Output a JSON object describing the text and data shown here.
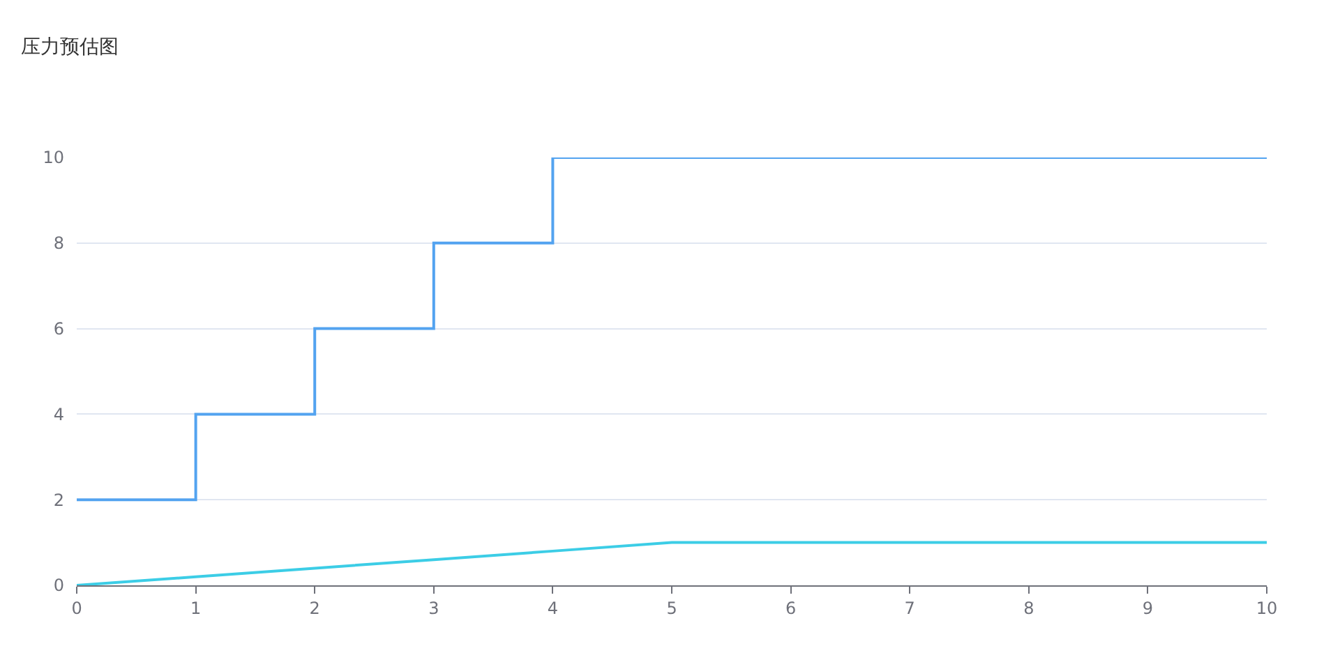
{
  "chart_data": {
    "type": "line",
    "title": "压力预估图",
    "x": [
      0,
      1,
      2,
      3,
      4,
      5,
      6,
      7,
      8,
      9,
      10
    ],
    "series": [
      {
        "type": "step",
        "color": "#53a3f0",
        "values": [
          2,
          4,
          6,
          8,
          10,
          10,
          10,
          10,
          10,
          10,
          10
        ]
      },
      {
        "type": "line",
        "color": "#3ccde6",
        "values": [
          0,
          0.2,
          0.4,
          0.6,
          0.8,
          1,
          1,
          1,
          1,
          1,
          1
        ]
      }
    ],
    "xlim": [
      0,
      10
    ],
    "xticks": [
      0,
      1,
      2,
      3,
      4,
      5,
      6,
      7,
      8,
      9,
      10
    ],
    "ylim": [
      0,
      10
    ],
    "yticks": [
      0,
      2,
      4,
      6,
      8,
      10
    ],
    "grid": "y",
    "marker": "none"
  }
}
